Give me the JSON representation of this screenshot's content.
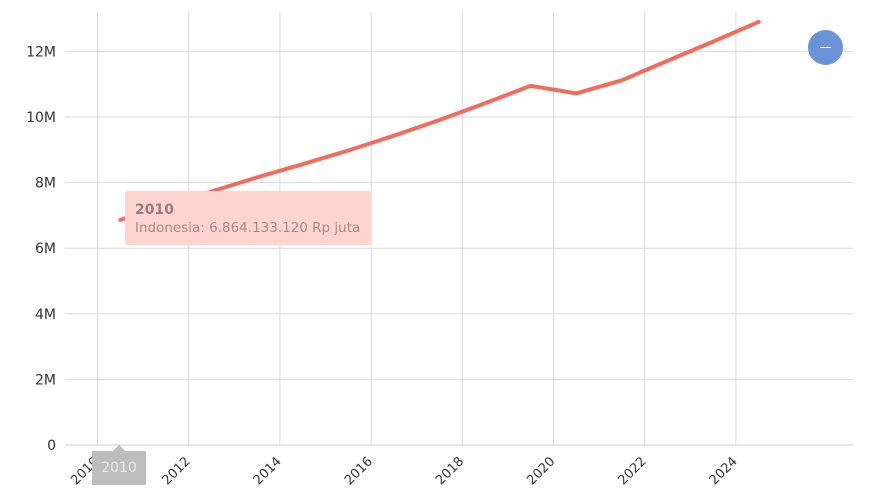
{
  "chart_data": {
    "type": "line",
    "title": "",
    "xlabel": "",
    "ylabel": "",
    "x_ticks": [
      "2010",
      "2012",
      "2014",
      "2016",
      "2018",
      "2020",
      "2022",
      "2024"
    ],
    "y_ticks": [
      "0",
      "2M",
      "4M",
      "6M",
      "8M",
      "10M",
      "12M"
    ],
    "xlim": [
      2009.5,
      2026.8
    ],
    "ylim": [
      0,
      13000000
    ],
    "grid": true,
    "series": [
      {
        "name": "Indonesia",
        "color": "#f26b5b",
        "x": [
          2010.5,
          2011.5,
          2012.5,
          2013.5,
          2014.5,
          2015.5,
          2016.5,
          2017.5,
          2018.5,
          2019.5,
          2020.5,
          2021.5,
          2022.5,
          2023.5,
          2024.5
        ],
        "values": [
          6864133,
          7290000,
          7730000,
          8160000,
          8560000,
          8980000,
          9430000,
          9910000,
          10420000,
          10950000,
          10720000,
          11120000,
          11710000,
          12300000,
          12900000
        ]
      }
    ]
  },
  "tooltip": {
    "title": "2010",
    "text": "Indonesia: 6.864.133.120 Rp juta",
    "background": "#ffd4d0"
  },
  "cursor_label": "2010",
  "zoom_button": {
    "icon": "minus-icon",
    "color": "#6b93d8"
  }
}
